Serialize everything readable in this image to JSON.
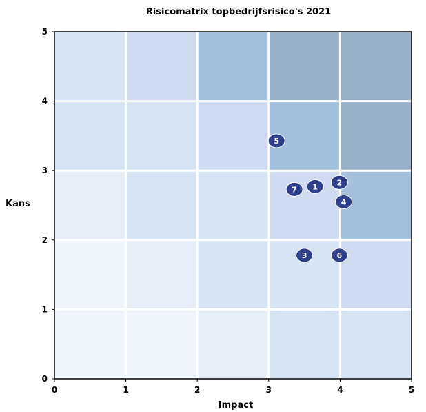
{
  "chart_data": {
    "type": "scatter",
    "title": "Risicomatrix topbedrijfsrisico's 2021",
    "xlabel": "Impact",
    "ylabel": "Kans",
    "xlim": [
      0,
      5
    ],
    "ylim": [
      0,
      5
    ],
    "xticks": [
      "0",
      "1",
      "2",
      "3",
      "4",
      "5"
    ],
    "yticks": [
      "0",
      "1",
      "2",
      "3",
      "4",
      "5"
    ],
    "grid": true,
    "legend": "none",
    "cell_colors": [
      [
        "#f0f4fb",
        "#f0f4fb",
        "#e6edf7",
        "#d5e3f2",
        "#d5e3f2"
      ],
      [
        "#f0f4fb",
        "#e6edf7",
        "#d5e3f2",
        "#d5e3f2",
        "#d0dbf1"
      ],
      [
        "#e6edf7",
        "#d5e3f2",
        "#d5e3f2",
        "#d0dbf1",
        "#a3c1de"
      ],
      [
        "#d5e3f2",
        "#d5e3f2",
        "#d0dbf1",
        "#a3c1de",
        "#9ab0c8"
      ],
      [
        "#d5e3f2",
        "#d0dbf1",
        "#a3c1de",
        "#9ab0c8",
        "#9ab0c8"
      ]
    ],
    "marker_color": "#2e3f8b",
    "points": [
      {
        "label": "1",
        "x": 3.65,
        "y": 2.77
      },
      {
        "label": "2",
        "x": 3.99,
        "y": 2.83
      },
      {
        "label": "3",
        "x": 3.5,
        "y": 1.78
      },
      {
        "label": "4",
        "x": 4.05,
        "y": 2.55
      },
      {
        "label": "5",
        "x": 3.11,
        "y": 3.43
      },
      {
        "label": "6",
        "x": 3.99,
        "y": 1.78
      },
      {
        "label": "7",
        "x": 3.36,
        "y": 2.73
      }
    ]
  }
}
